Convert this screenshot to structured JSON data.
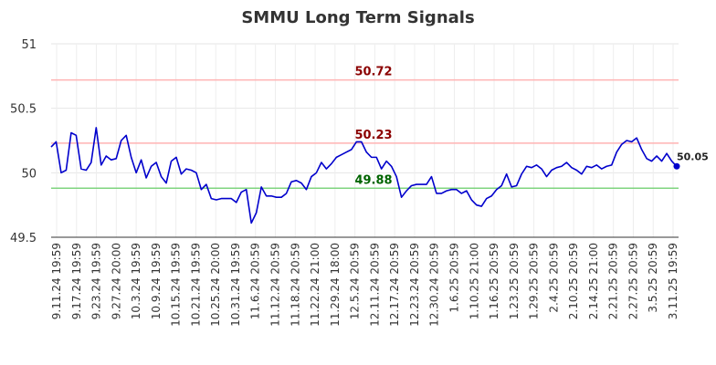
{
  "chart_data": {
    "type": "line",
    "title": "SMMU Long Term Signals",
    "ylim": [
      49.5,
      51
    ],
    "yticks": [
      "49.5",
      "50",
      "50.5",
      "51"
    ],
    "grid": true,
    "x_tick_labels": [
      "9.11.24 19:59",
      "9.17.24 19:59",
      "9.23.24 19:59",
      "9.27.24 20:00",
      "10.3.24 19:59",
      "10.9.24 19:59",
      "10.15.24 19:59",
      "10.21.24 19:59",
      "10.25.24 20:00",
      "10.31.24 19:59",
      "11.6.24 20:59",
      "11.12.24 20:59",
      "11.18.24 20:59",
      "11.22.24 21:00",
      "11.29.24 18:00",
      "12.5.24 20:59",
      "12.11.24 20:59",
      "12.17.24 20:59",
      "12.23.24 20:59",
      "12.30.24 20:59",
      "1.6.25 20:59",
      "1.10.25 21:00",
      "1.16.25 20:59",
      "1.23.25 20:59",
      "1.29.25 20:59",
      "2.4.25 20:59",
      "2.10.25 20:59",
      "2.14.25 21:00",
      "2.21.25 20:59",
      "2.27.25 20:59",
      "3.5.25 20:59",
      "3.11.25 19:59"
    ],
    "levels": [
      {
        "value": 50.72,
        "label": "50.72",
        "line_color": "#ffb3b3",
        "text_color": "#8b0000"
      },
      {
        "value": 50.23,
        "label": "50.23",
        "line_color": "#ffb3b3",
        "text_color": "#8b0000"
      },
      {
        "value": 49.88,
        "label": "49.88",
        "line_color": "#7fd47f",
        "text_color": "#006400"
      }
    ],
    "series": [
      {
        "color": "#0000cc",
        "values": [
          50.2,
          50.24,
          50.0,
          50.02,
          50.31,
          50.29,
          50.03,
          50.02,
          50.08,
          50.35,
          50.06,
          50.13,
          50.1,
          50.11,
          50.25,
          50.29,
          50.12,
          50.0,
          50.1,
          49.96,
          50.05,
          50.08,
          49.97,
          49.92,
          50.09,
          50.12,
          49.99,
          50.03,
          50.02,
          50.0,
          49.87,
          49.91,
          49.8,
          49.79,
          49.8,
          49.8,
          49.8,
          49.77,
          49.85,
          49.87,
          49.61,
          49.69,
          49.89,
          49.82,
          49.82,
          49.81,
          49.81,
          49.84,
          49.93,
          49.94,
          49.92,
          49.87,
          49.97,
          50.0,
          50.08,
          50.03,
          50.07,
          50.12,
          50.14,
          50.16,
          50.18,
          50.24,
          50.24,
          50.16,
          50.12,
          50.12,
          50.03,
          50.09,
          50.05,
          49.97,
          49.81,
          49.86,
          49.9,
          49.91,
          49.91,
          49.91,
          49.97,
          49.84,
          49.84,
          49.86,
          49.87,
          49.87,
          49.84,
          49.86,
          49.79,
          49.75,
          49.74,
          49.8,
          49.82,
          49.87,
          49.9,
          49.99,
          49.89,
          49.9,
          49.99,
          50.05,
          50.04,
          50.06,
          50.03,
          49.97,
          50.02,
          50.04,
          50.05,
          50.08,
          50.04,
          50.02,
          49.99,
          50.05,
          50.04,
          50.06,
          50.03,
          50.05,
          50.06,
          50.16,
          50.22,
          50.25,
          50.24,
          50.27,
          50.18,
          50.11,
          50.09,
          50.13,
          50.09,
          50.15,
          50.09,
          50.05
        ]
      }
    ],
    "last_point_label": "50.05"
  }
}
